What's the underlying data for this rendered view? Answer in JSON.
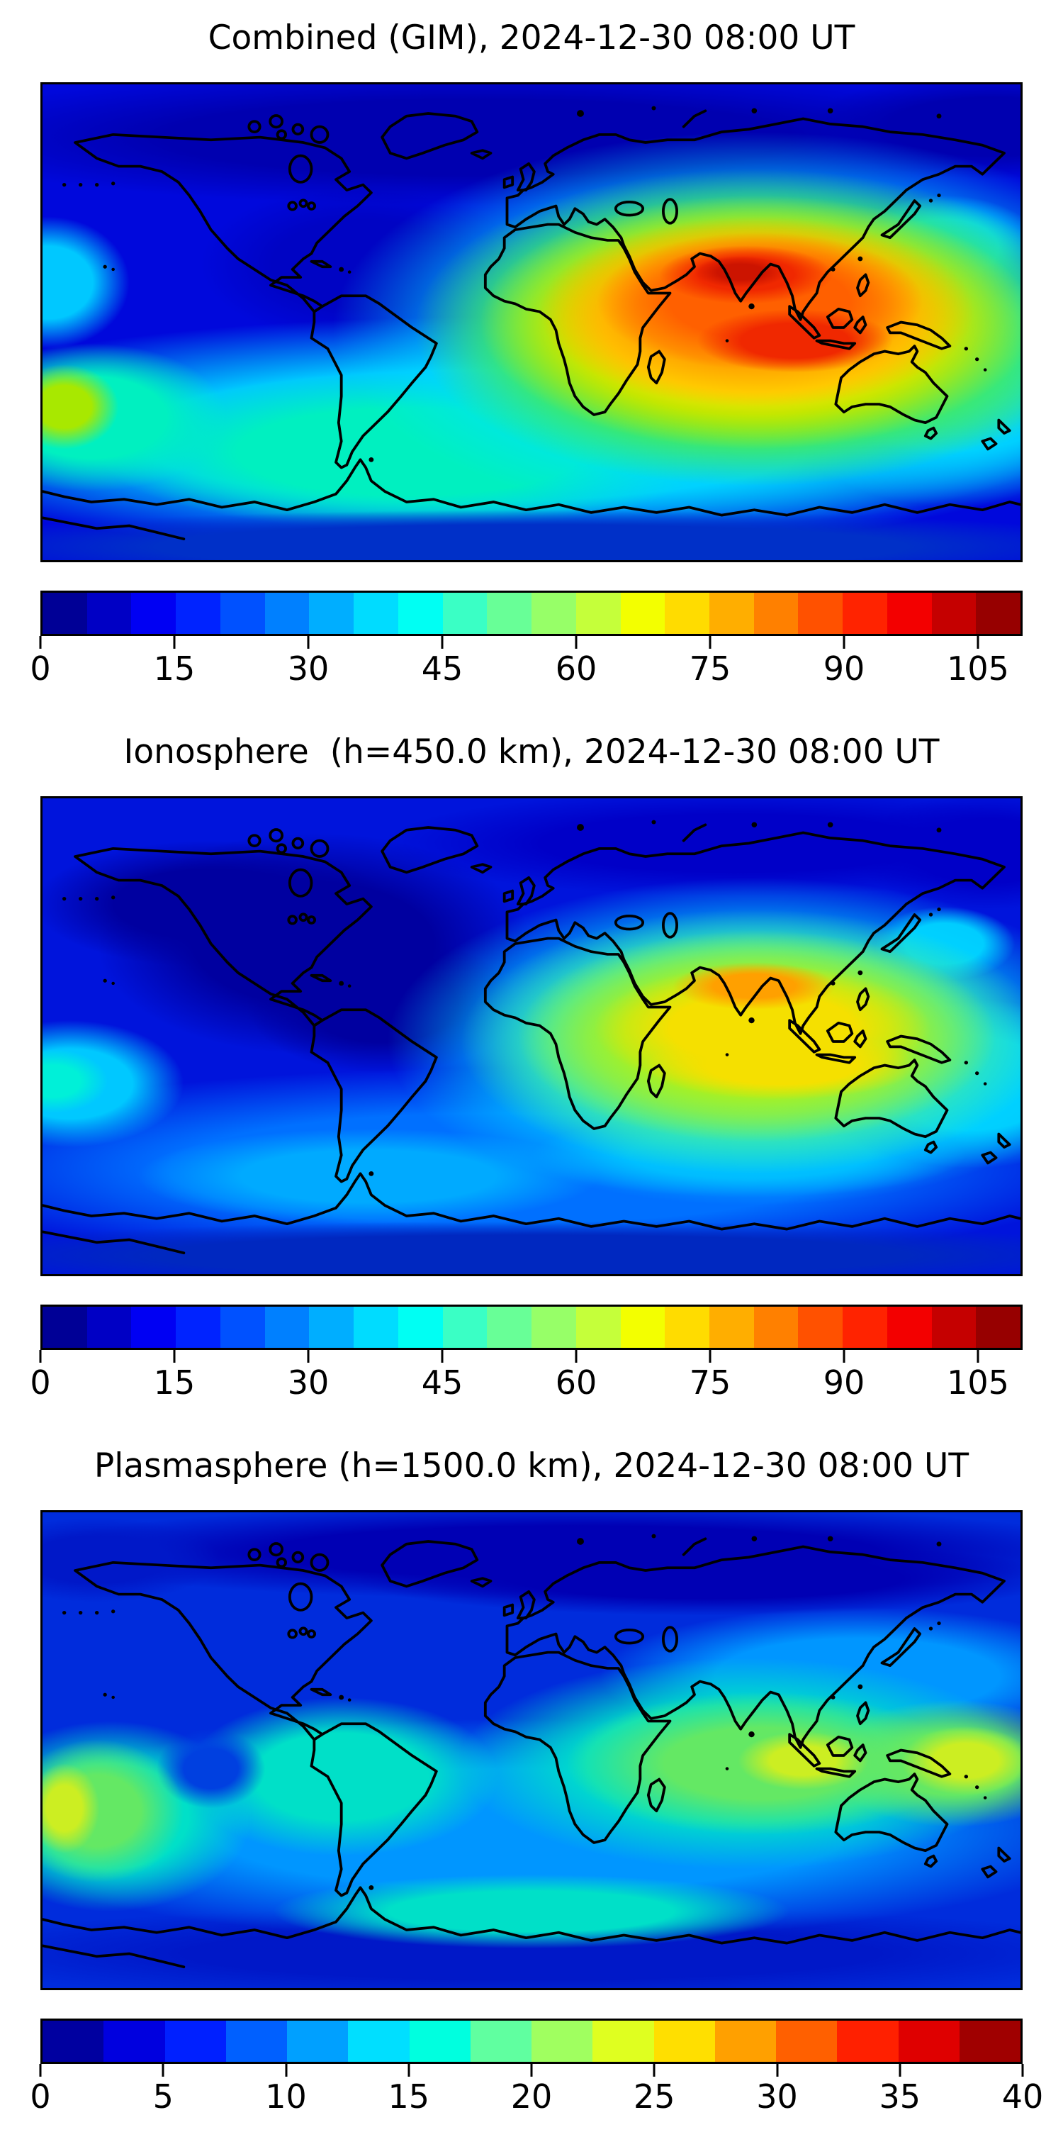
{
  "page": {
    "background": "#FFFFFF"
  },
  "figure": {
    "panels": [
      {
        "id": "combined-gim",
        "title": "Combined (GIM), 2024-12-30 08:00 UT",
        "colorbar": {
          "min": 0,
          "max": 110,
          "contour_interval": 5,
          "ticks": [
            0,
            15,
            30,
            45,
            60,
            75,
            90,
            105
          ],
          "tick_labels": [
            "0",
            "15",
            "30",
            "45",
            "60",
            "75",
            "90",
            "105"
          ],
          "colormap": "jet",
          "segment_colors": [
            "#000096",
            "#0000C5",
            "#0000F3",
            "#0023FF",
            "#0051FF",
            "#0080FF",
            "#00AEFF",
            "#00DCFF",
            "#00FFF3",
            "#3AFFC5",
            "#68FF97",
            "#97FF68",
            "#C5FF3A",
            "#F3FF00",
            "#FFDC00",
            "#FFAE00",
            "#FF8000",
            "#FF5100",
            "#FF2300",
            "#F30000",
            "#C50000",
            "#970000"
          ]
        }
      },
      {
        "id": "ionosphere",
        "title": "Ionosphere  (h=450.0 km), 2024-12-30 08:00 UT",
        "colorbar": {
          "min": 0,
          "max": 110,
          "contour_interval": 5,
          "ticks": [
            0,
            15,
            30,
            45,
            60,
            75,
            90,
            105
          ],
          "tick_labels": [
            "0",
            "15",
            "30",
            "45",
            "60",
            "75",
            "90",
            "105"
          ],
          "colormap": "jet",
          "segment_colors": [
            "#000096",
            "#0000C5",
            "#0000F3",
            "#0023FF",
            "#0051FF",
            "#0080FF",
            "#00AEFF",
            "#00DCFF",
            "#00FFF3",
            "#3AFFC5",
            "#68FF97",
            "#97FF68",
            "#C5FF3A",
            "#F3FF00",
            "#FFDC00",
            "#FFAE00",
            "#FF8000",
            "#FF5100",
            "#FF2300",
            "#F30000",
            "#C50000",
            "#970000"
          ]
        }
      },
      {
        "id": "plasmasphere",
        "title": "Plasmasphere (h=1500.0 km), 2024-12-30 08:00 UT",
        "colorbar": {
          "min": 0,
          "max": 40,
          "contour_interval": 2.5,
          "ticks": [
            0,
            5,
            10,
            15,
            20,
            25,
            30,
            35,
            40
          ],
          "tick_labels": [
            "0",
            "5",
            "10",
            "15",
            "20",
            "25",
            "30",
            "35",
            "40"
          ],
          "colormap": "jet",
          "segment_colors": [
            "#0000A0",
            "#0000DF",
            "#0020FF",
            "#0060FF",
            "#00A0FF",
            "#00DFFF",
            "#00FFDF",
            "#60FFA0",
            "#A0FF60",
            "#DFFF20",
            "#FFDF00",
            "#FFA000",
            "#FF6000",
            "#FF2000",
            "#DF0000",
            "#A00000"
          ]
        }
      }
    ]
  },
  "chart_data": [
    {
      "type": "heatmap",
      "subtype": "filled-contour-world-map",
      "title": "Combined (GIM), 2024-12-30 08:00 UT",
      "projection": "equirectangular",
      "lon_range": [
        -180,
        180
      ],
      "lat_range": [
        -90,
        90
      ],
      "value_range": [
        0,
        110
      ],
      "contour_interval": 5,
      "colorbar_ticks": [
        0,
        15,
        30,
        45,
        60,
        75,
        90,
        105
      ],
      "colormap": "jet",
      "coastlines": true,
      "features": [
        {
          "region": "northern India / Bay of Bengal",
          "lon": 82,
          "lat": 18,
          "value": 95,
          "note": "primary crest, red-orange core"
        },
        {
          "region": "Sumatra / eastern Indian Ocean",
          "lon": 96,
          "lat": -6,
          "value": 90,
          "note": "secondary crest, red-orange core"
        },
        {
          "region": "Africa through west Pacific",
          "lon": 60,
          "lat": 5,
          "value": 60,
          "note": "broad yellow halo around crests"
        },
        {
          "region": "south Pacific, left edge",
          "lon": -172,
          "lat": -25,
          "value": 50,
          "note": "local yellow-green maximum"
        },
        {
          "region": "southern mid-latitude band",
          "lon": -60,
          "lat": -45,
          "value": 35
        },
        {
          "region": "North America / North Atlantic",
          "lon": -90,
          "lat": 45,
          "value": 8,
          "note": "night-side minimum"
        },
        {
          "region": "Antarctic coast band",
          "lon": 0,
          "lat": -70,
          "value": 15
        }
      ]
    },
    {
      "type": "heatmap",
      "subtype": "filled-contour-world-map",
      "title": "Ionosphere  (h=450.0 km), 2024-12-30 08:00 UT",
      "projection": "equirectangular",
      "lon_range": [
        -180,
        180
      ],
      "lat_range": [
        -90,
        90
      ],
      "value_range": [
        0,
        110
      ],
      "contour_interval": 5,
      "colorbar_ticks": [
        0,
        15,
        30,
        45,
        60,
        75,
        90,
        105
      ],
      "colormap": "jet",
      "coastlines": true,
      "features": [
        {
          "region": "northern India / Bangladesh",
          "lon": 85,
          "lat": 22,
          "value": 72,
          "note": "orange crest"
        },
        {
          "region": "eastern Indian Ocean south of Sumatra",
          "lon": 95,
          "lat": -10,
          "value": 60,
          "note": "yellow band"
        },
        {
          "region": "Africa to west Pacific",
          "lon": 60,
          "lat": 0,
          "value": 40,
          "note": "green halo"
        },
        {
          "region": "equatorial south Pacific, left edge",
          "lon": -175,
          "lat": -17,
          "value": 30,
          "note": "cyan patch"
        },
        {
          "region": "Americas / Atlantic",
          "lon": -70,
          "lat": 25,
          "value": 5,
          "note": "dark navy minimum"
        },
        {
          "region": "southern ocean band",
          "lon": 0,
          "lat": -55,
          "value": 20
        }
      ]
    },
    {
      "type": "heatmap",
      "subtype": "filled-contour-world-map",
      "title": "Plasmasphere (h=1500.0 km), 2024-12-30 08:00 UT",
      "projection": "equirectangular",
      "lon_range": [
        -180,
        180
      ],
      "lat_range": [
        -90,
        90
      ],
      "value_range": [
        0,
        40
      ],
      "contour_interval": 2.5,
      "colorbar_ticks": [
        0,
        5,
        10,
        15,
        20,
        25,
        30,
        35,
        40
      ],
      "colormap": "jet",
      "coastlines": true,
      "features": [
        {
          "region": "south Pacific, left edge",
          "lon": -172,
          "lat": -22,
          "value": 28,
          "note": "yellow-green maximum"
        },
        {
          "region": "Sumatra / eastern Indian Ocean",
          "lon": 98,
          "lat": -4,
          "value": 27,
          "note": "yellow-green maximum"
        },
        {
          "region": "east of New Guinea",
          "lon": 158,
          "lat": -6,
          "value": 26,
          "note": "yellow-green maximum"
        },
        {
          "region": "tropical band",
          "lon": 0,
          "lat": -15,
          "value": 18,
          "note": "aqua/green belt"
        },
        {
          "region": "high northern latitudes (Europe/Siberia)",
          "lon": 60,
          "lat": 72,
          "value": 6,
          "note": "navy minimum"
        },
        {
          "region": "Antarctic interior",
          "lon": 90,
          "lat": -78,
          "value": 7
        }
      ]
    }
  ]
}
